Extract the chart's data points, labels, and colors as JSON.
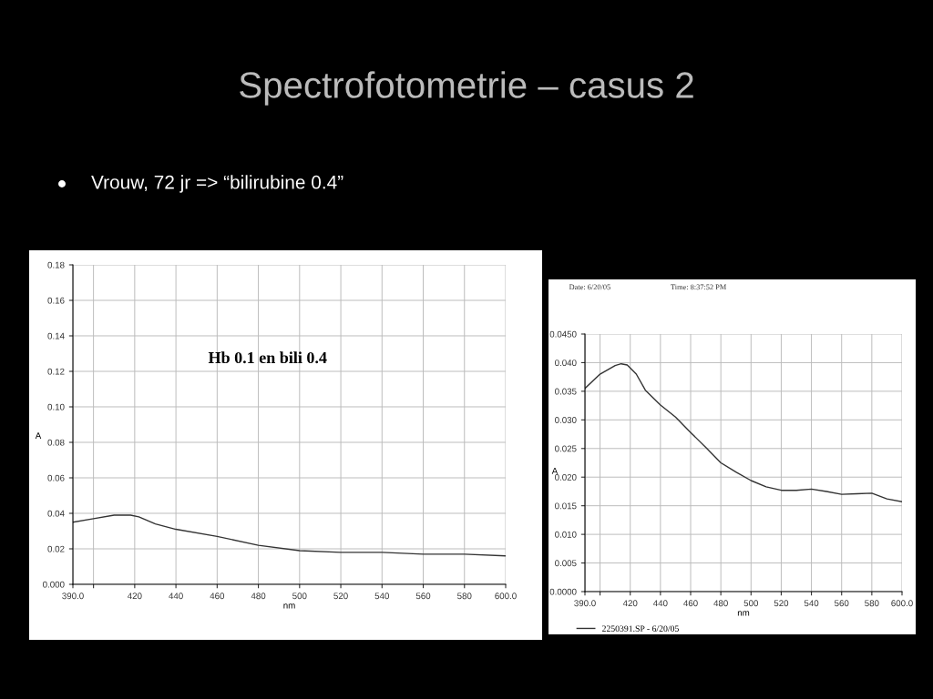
{
  "chart_data": [
    {
      "type": "line",
      "title": "Spectrofotometrie – casus 2",
      "subtitle": "Vrouw, 72 jr => “bilirubine 0.4”",
      "xlabel": "nm",
      "ylabel": "A",
      "annotations": [
        "Hb 0.1 en bili 0.4"
      ],
      "series": [
        {
          "color": "#333333",
          "x": [
            390,
            400,
            410,
            418,
            422,
            430,
            440,
            460,
            480,
            500,
            520,
            540,
            560,
            580,
            600
          ],
          "values": [
            0.035,
            0.037,
            0.039,
            0.039,
            0.038,
            0.034,
            0.031,
            0.027,
            0.022,
            0.019,
            0.018,
            0.018,
            0.017,
            0.017,
            0.016
          ]
        }
      ],
      "xlim": [
        390,
        600
      ],
      "ylim": [
        0,
        0.18
      ],
      "xticks": [
        {
          "value": 390,
          "label": "390.0"
        },
        {
          "value": 400,
          "label": null
        },
        420,
        440,
        460,
        480,
        500,
        520,
        540,
        560,
        580,
        {
          "value": 600,
          "label": "600.0"
        }
      ],
      "yticks": [
        {
          "value": 0,
          "label": "0.000"
        },
        {
          "value": 0.02,
          "label": "0.02"
        },
        {
          "value": 0.04,
          "label": "0.04"
        },
        {
          "value": 0.06,
          "label": "0.06"
        },
        {
          "value": 0.08,
          "label": "0.08"
        },
        {
          "value": 0.1,
          "label": "0.10"
        },
        {
          "value": 0.12,
          "label": "0.12"
        },
        {
          "value": 0.14,
          "label": "0.14"
        },
        {
          "value": 0.16,
          "label": "0.16"
        },
        {
          "value": 0.18,
          "label": "0.18"
        }
      ],
      "grid": true,
      "legend": false,
      "marker": "none",
      "line_style": "solid"
    },
    {
      "type": "line",
      "xlabel": "nm",
      "ylabel": "A",
      "annotations": [
        "Date: 6/20/05",
        "Time: 8:37:52 PM"
      ],
      "series": [
        {
          "name": "2250391.SP - 6/20/05",
          "color": "#333333",
          "x": [
            390,
            400,
            410,
            414,
            418,
            424,
            430,
            440,
            450,
            460,
            470,
            480,
            490,
            500,
            510,
            520,
            530,
            540,
            550,
            560,
            570,
            580,
            590,
            600
          ],
          "values": [
            0.0355,
            0.038,
            0.0395,
            0.0398,
            0.0396,
            0.038,
            0.0352,
            0.0326,
            0.0305,
            0.0278,
            0.0252,
            0.0225,
            0.0209,
            0.0194,
            0.0183,
            0.0177,
            0.0177,
            0.0179,
            0.0175,
            0.017,
            0.0171,
            0.0172,
            0.0162,
            0.0157
          ]
        }
      ],
      "xlim": [
        390,
        600
      ],
      "ylim": [
        0,
        0.045
      ],
      "xticks": [
        {
          "value": 390,
          "label": "390.0"
        },
        {
          "value": 400,
          "label": null
        },
        420,
        440,
        460,
        480,
        500,
        520,
        540,
        560,
        580,
        {
          "value": 600,
          "label": "600.0"
        }
      ],
      "yticks": [
        {
          "value": 0,
          "label": "0.0000"
        },
        {
          "value": 0.005,
          "label": "0.005"
        },
        {
          "value": 0.01,
          "label": "0.010"
        },
        {
          "value": 0.015,
          "label": "0.015"
        },
        {
          "value": 0.02,
          "label": "0.020"
        },
        {
          "value": 0.025,
          "label": "0.025"
        },
        {
          "value": 0.03,
          "label": "0.030"
        },
        {
          "value": 0.035,
          "label": "0.035"
        },
        {
          "value": 0.04,
          "label": "0.040"
        },
        {
          "value": 0.045,
          "label": "0.0450"
        }
      ],
      "grid": true,
      "legend": "bottom",
      "marker": "none",
      "line_style": "solid"
    }
  ]
}
